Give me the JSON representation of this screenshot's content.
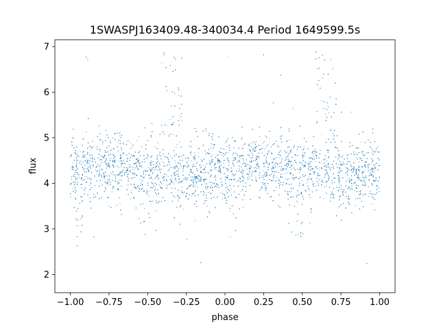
{
  "chart_data": {
    "type": "scatter",
    "title": "1SWASPJ163409.48-340034.4 Period 1649599.5s",
    "xlabel": "phase",
    "ylabel": "flux",
    "xlim": [
      -1.1,
      1.1
    ],
    "ylim": [
      1.6,
      7.15
    ],
    "x_ticks": [
      -1.0,
      -0.75,
      -0.5,
      -0.25,
      0.0,
      0.25,
      0.5,
      0.75,
      1.0
    ],
    "x_tick_labels": [
      "−1.00",
      "−0.75",
      "−0.50",
      "−0.25",
      "0.00",
      "0.25",
      "0.50",
      "0.75",
      "1.00"
    ],
    "y_ticks": [
      2,
      3,
      4,
      5,
      6,
      7
    ],
    "y_tick_labels": [
      "2",
      "3",
      "4",
      "5",
      "6",
      "7"
    ],
    "grid": false,
    "point_color": "#1f77b4",
    "series": [
      {
        "baseline_flux": 4.3,
        "band_spread": 0.35,
        "phase_range": [
          -1.0,
          1.0
        ],
        "fold_period_phase": 1.0,
        "point_count_approx": 9000,
        "bright_excursions": [
          {
            "phase": -0.38,
            "flux_max": 6.9
          },
          {
            "phase": -0.31,
            "flux_max": 6.8
          },
          {
            "phase": 0.62,
            "flux_max": 6.9
          },
          {
            "phase": 0.69,
            "flux_max": 6.8
          }
        ],
        "dip_regions": [
          {
            "phase": -0.56,
            "flux_min": 2.7
          },
          {
            "phase": -0.51,
            "flux_min": 2.8
          },
          {
            "phase": 0.44,
            "flux_min": 2.7
          },
          {
            "phase": 0.49,
            "flux_min": 2.8
          },
          {
            "phase": -0.95,
            "flux_min": 2.8
          },
          {
            "phase": 0.05,
            "flux_min": 2.8
          }
        ]
      }
    ]
  }
}
